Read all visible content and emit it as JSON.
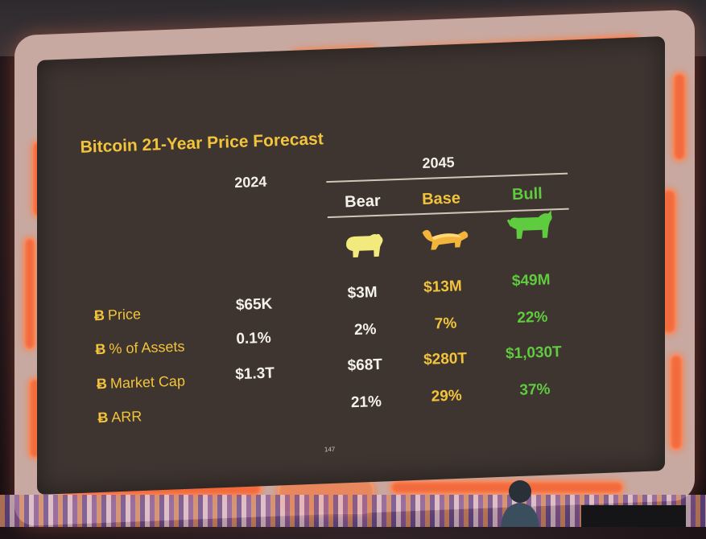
{
  "slide": {
    "title": "Bitcoin 21-Year Price Forecast",
    "page_number": "147",
    "col_2024": "2024",
    "col_2045": "2045",
    "scenarios": [
      "Bear",
      "Base",
      "Bull"
    ],
    "scenario_icons": [
      "bear-icon",
      "honey-badger-icon",
      "bull-icon"
    ],
    "btc_symbol": "Ƀ",
    "rows": [
      {
        "label": "Price",
        "v2024": "$65K",
        "bear": "$3M",
        "base": "$13M",
        "bull": "$49M"
      },
      {
        "label": "% of Assets",
        "v2024": "0.1%",
        "bear": "2%",
        "base": "7%",
        "bull": "22%"
      },
      {
        "label": "Market Cap",
        "v2024": "$1.3T",
        "bear": "$68T",
        "base": "$280T",
        "bull": "$1,030T"
      },
      {
        "label": "ARR",
        "v2024": "",
        "bear": "21%",
        "base": "29%",
        "bull": "37%"
      }
    ],
    "colors": {
      "title": "#f2c43c",
      "bear": "#f5f2ea",
      "base": "#f2c43c",
      "bull": "#5fcb3e",
      "frame_neon": "#f36a3d"
    }
  }
}
